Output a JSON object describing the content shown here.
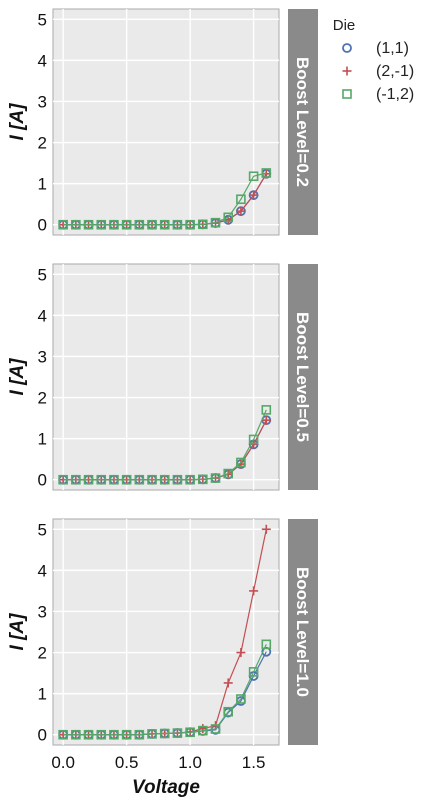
{
  "chart_data": {
    "type": "line",
    "xlabel": "Voltage",
    "ylabel": "I [A]",
    "xlim": [
      -0.08,
      1.7
    ],
    "ylim": [
      -0.25,
      5.25
    ],
    "xticks": [
      0.0,
      0.5,
      1.0,
      1.5
    ],
    "xtick_labels": [
      "0.0",
      "0.5",
      "1.0",
      "1.5"
    ],
    "yticks": [
      0,
      1,
      2,
      3,
      4,
      5
    ],
    "ytick_labels": [
      "0",
      "1",
      "2",
      "3",
      "4",
      "5"
    ],
    "grid": true,
    "legend_title": "Die",
    "legend_position": "top-right",
    "x": [
      0.0,
      0.1,
      0.2,
      0.3,
      0.4,
      0.5,
      0.6,
      0.7,
      0.8,
      0.9,
      1.0,
      1.1,
      1.2,
      1.3,
      1.4,
      1.5,
      1.6
    ],
    "series_style": [
      {
        "name": "(1,1)",
        "marker": "circle",
        "color": "#4C72B0"
      },
      {
        "name": "(2,-1)",
        "marker": "plus",
        "color": "#C44E52"
      },
      {
        "name": "(-1,2)",
        "marker": "square",
        "color": "#55A868"
      }
    ],
    "facets": [
      {
        "label": "Boost Level=0.2",
        "series": [
          {
            "name": "(1,1)",
            "values": [
              0,
              0,
              0,
              0,
              0,
              0,
              0,
              0,
              0,
              0,
              0,
              0.01,
              0.04,
              0.12,
              0.33,
              0.72,
              1.24
            ]
          },
          {
            "name": "(2,-1)",
            "values": [
              0,
              0,
              0,
              0,
              0,
              0,
              0,
              0,
              0,
              0,
              0,
              0.01,
              0.04,
              0.12,
              0.33,
              0.72,
              1.24
            ]
          },
          {
            "name": "(-1,2)",
            "values": [
              0,
              0,
              0,
              0,
              0,
              0,
              0,
              0,
              0,
              0,
              0,
              0.01,
              0.05,
              0.18,
              0.62,
              1.18,
              1.26
            ]
          }
        ]
      },
      {
        "label": "Boost Level=0.5",
        "series": [
          {
            "name": "(1,1)",
            "values": [
              0,
              0,
              0,
              0,
              0,
              0,
              0,
              0,
              0,
              0,
              0,
              0.01,
              0.04,
              0.13,
              0.38,
              0.86,
              1.45
            ]
          },
          {
            "name": "(2,-1)",
            "values": [
              0,
              0,
              0,
              0,
              0,
              0,
              0,
              0,
              0,
              0,
              0,
              0.01,
              0.04,
              0.13,
              0.38,
              0.86,
              1.45
            ]
          },
          {
            "name": "(-1,2)",
            "values": [
              0,
              0,
              0,
              0,
              0,
              0,
              0,
              0,
              0,
              0,
              0,
              0.01,
              0.04,
              0.15,
              0.42,
              0.98,
              1.7
            ]
          }
        ]
      },
      {
        "label": "Boost Level=1.0",
        "series": [
          {
            "name": "(1,1)",
            "values": [
              0,
              0,
              0,
              0,
              0,
              0,
              0,
              0.02,
              0.03,
              0.04,
              0.06,
              0.09,
              0.12,
              0.54,
              0.82,
              1.43,
              2.02
            ]
          },
          {
            "name": "(2,-1)",
            "values": [
              0,
              0,
              0,
              0,
              0,
              0,
              0,
              0.02,
              0.03,
              0.04,
              0.07,
              0.15,
              0.22,
              1.26,
              2.0,
              3.5,
              5.0
            ]
          },
          {
            "name": "(-1,2)",
            "values": [
              0,
              0,
              0,
              0,
              0,
              0,
              0,
              0.02,
              0.03,
              0.04,
              0.06,
              0.1,
              0.14,
              0.56,
              0.87,
              1.53,
              2.2
            ]
          }
        ]
      }
    ]
  }
}
